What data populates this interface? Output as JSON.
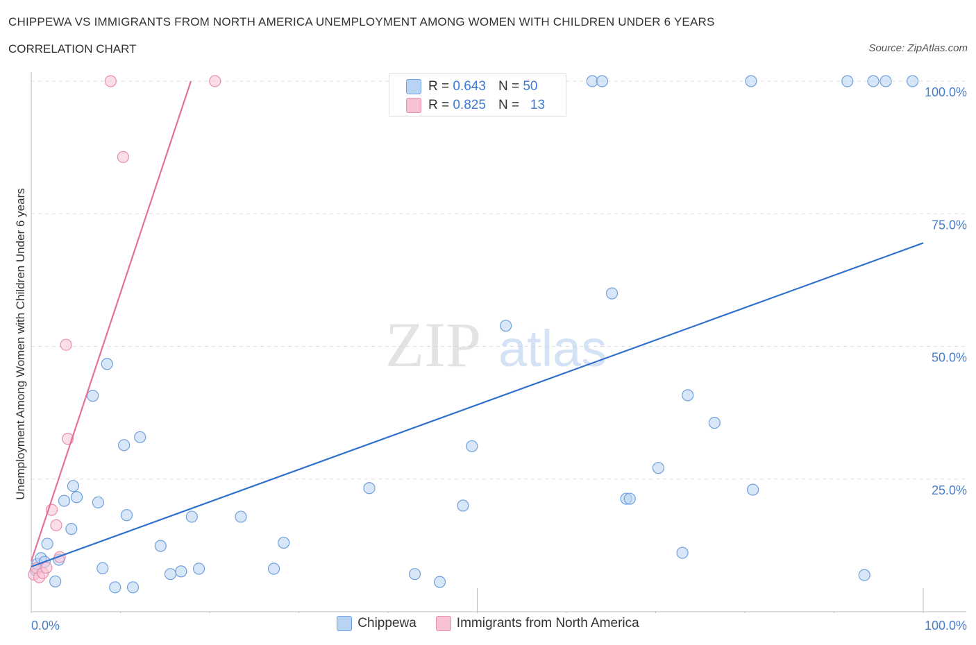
{
  "title": "CHIPPEWA VS IMMIGRANTS FROM NORTH AMERICA UNEMPLOYMENT AMONG WOMEN WITH CHILDREN UNDER 6 YEARS",
  "subtitle": "CORRELATION CHART",
  "source": "Source: ZipAtlas.com",
  "watermark": {
    "zip": "ZIP",
    "atlas": "atlas"
  },
  "colors": {
    "blue_fill": "#b8d3f3",
    "blue_stroke": "#6f9fdc",
    "blue_line": "#2f70cc",
    "pink_fill": "#f7c3d3",
    "pink_stroke": "#e98fae",
    "pink_line": "#e4709c",
    "tick_text": "#4a7fc8",
    "grid": "#dddddd"
  },
  "stats_legend": [
    {
      "r_label": "R =",
      "r_value": "0.643",
      "n_label": "N =",
      "n_value": "50"
    },
    {
      "r_label": "R =",
      "r_value": "0.825",
      "n_label": "N =",
      "n_value": "13"
    }
  ],
  "chart_data": {
    "type": "scatter",
    "title": "CHIPPEWA VS IMMIGRANTS FROM NORTH AMERICA UNEMPLOYMENT AMONG WOMEN WITH CHILDREN UNDER 6 YEARS",
    "xlabel": "",
    "ylabel": "Unemployment Among Women with Children Under 6 years",
    "xlim": [
      0,
      100
    ],
    "ylim": [
      0,
      100
    ],
    "x_tick_labels": [
      "0.0%",
      "100.0%"
    ],
    "y_tick_labels": [
      {
        "value": 100,
        "label": "100.0%"
      },
      {
        "value": 75,
        "label": "75.0%"
      },
      {
        "value": 50,
        "label": "50.0%"
      },
      {
        "value": 25,
        "label": "25.0%"
      }
    ],
    "grid": true,
    "series": [
      {
        "name": "Chippewa",
        "points": [
          [
            0.5,
            7.8
          ],
          [
            0.7,
            9.0
          ],
          [
            1.1,
            10.1
          ],
          [
            1.5,
            9.4
          ],
          [
            1.8,
            12.8
          ],
          [
            2.7,
            5.7
          ],
          [
            3.1,
            9.8
          ],
          [
            3.7,
            20.9
          ],
          [
            4.5,
            15.6
          ],
          [
            4.7,
            23.7
          ],
          [
            5.1,
            21.6
          ],
          [
            6.9,
            40.7
          ],
          [
            7.5,
            20.6
          ],
          [
            8.0,
            8.2
          ],
          [
            8.5,
            46.7
          ],
          [
            9.4,
            4.6
          ],
          [
            10.4,
            31.4
          ],
          [
            10.7,
            18.2
          ],
          [
            11.4,
            4.6
          ],
          [
            12.2,
            32.9
          ],
          [
            14.5,
            12.4
          ],
          [
            15.6,
            7.1
          ],
          [
            16.8,
            7.6
          ],
          [
            18.0,
            17.9
          ],
          [
            18.8,
            8.1
          ],
          [
            23.5,
            17.9
          ],
          [
            27.2,
            8.1
          ],
          [
            28.3,
            13.0
          ],
          [
            37.9,
            23.3
          ],
          [
            43.0,
            7.1
          ],
          [
            45.8,
            5.6
          ],
          [
            48.4,
            20.0
          ],
          [
            49.4,
            31.2
          ],
          [
            53.2,
            53.9
          ],
          [
            62.9,
            100
          ],
          [
            64.0,
            100
          ],
          [
            65.1,
            60.0
          ],
          [
            66.7,
            21.3
          ],
          [
            67.1,
            21.3
          ],
          [
            70.3,
            27.1
          ],
          [
            73.0,
            11.1
          ],
          [
            73.6,
            40.8
          ],
          [
            76.6,
            35.6
          ],
          [
            80.7,
            100
          ],
          [
            80.9,
            23.0
          ],
          [
            91.5,
            100
          ],
          [
            93.4,
            6.9
          ],
          [
            94.4,
            100
          ],
          [
            95.8,
            100
          ],
          [
            98.8,
            100
          ]
        ],
        "trend": {
          "x": [
            0,
            100
          ],
          "y": [
            8.5,
            69.5
          ]
        }
      },
      {
        "name": "Immigrants from North America",
        "points": [
          [
            0.3,
            7.0
          ],
          [
            0.6,
            8.2
          ],
          [
            0.9,
            6.5
          ],
          [
            1.3,
            7.3
          ],
          [
            1.7,
            8.3
          ],
          [
            2.3,
            19.2
          ],
          [
            2.8,
            16.3
          ],
          [
            3.2,
            10.3
          ],
          [
            3.9,
            50.3
          ],
          [
            4.1,
            32.6
          ],
          [
            8.9,
            100
          ],
          [
            10.3,
            85.7
          ],
          [
            20.6,
            100
          ]
        ],
        "trend": {
          "x": [
            0,
            17.9
          ],
          "y": [
            9.5,
            100
          ]
        }
      }
    ]
  },
  "legend": [
    "Chippewa",
    "Immigrants from North America"
  ]
}
